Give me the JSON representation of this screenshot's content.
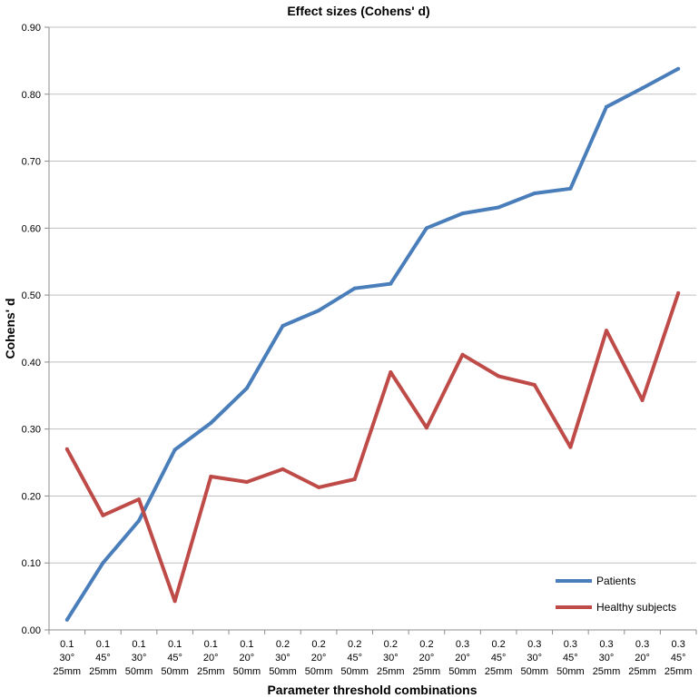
{
  "chart_data": {
    "type": "line",
    "title": "Effect sizes (Cohens' d)",
    "xlabel": "Parameter threshold combinations",
    "ylabel": "Cohens' d",
    "ylim": [
      0,
      0.9
    ],
    "yticks": [
      "0.00",
      "0.10",
      "0.20",
      "0.30",
      "0.40",
      "0.50",
      "0.60",
      "0.70",
      "0.80",
      "0.90"
    ],
    "grid": true,
    "legend_position": "bottom-right",
    "categories": [
      [
        "0.1",
        "30°",
        "25mm"
      ],
      [
        "0.1",
        "45°",
        "25mm"
      ],
      [
        "0.1",
        "30°",
        "50mm"
      ],
      [
        "0.1",
        "45°",
        "50mm"
      ],
      [
        "0.1",
        "20°",
        "25mm"
      ],
      [
        "0.1",
        "20°",
        "50mm"
      ],
      [
        "0.2",
        "30°",
        "50mm"
      ],
      [
        "0.2",
        "20°",
        "50mm"
      ],
      [
        "0.2",
        "45°",
        "50mm"
      ],
      [
        "0.2",
        "30°",
        "25mm"
      ],
      [
        "0.2",
        "20°",
        "25mm"
      ],
      [
        "0.3",
        "20°",
        "50mm"
      ],
      [
        "0.2",
        "45°",
        "25mm"
      ],
      [
        "0.3",
        "30°",
        "50mm"
      ],
      [
        "0.3",
        "45°",
        "50mm"
      ],
      [
        "0.3",
        "30°",
        "25mm"
      ],
      [
        "0.3",
        "20°",
        "25mm"
      ],
      [
        "0.3",
        "45°",
        "25mm"
      ]
    ],
    "series": [
      {
        "name": "Patients",
        "color": "#4a7ebb",
        "values": [
          0.015,
          0.1,
          0.163,
          0.269,
          0.309,
          0.361,
          0.454,
          0.477,
          0.51,
          0.517,
          0.6,
          0.622,
          0.631,
          0.652,
          0.659,
          0.781,
          0.809,
          0.838
        ]
      },
      {
        "name": "Healthy subjects",
        "color": "#be4b48",
        "values": [
          0.27,
          0.171,
          0.195,
          0.043,
          0.229,
          0.221,
          0.24,
          0.213,
          0.225,
          0.385,
          0.302,
          0.411,
          0.379,
          0.366,
          0.273,
          0.447,
          0.343,
          0.503
        ]
      }
    ]
  }
}
